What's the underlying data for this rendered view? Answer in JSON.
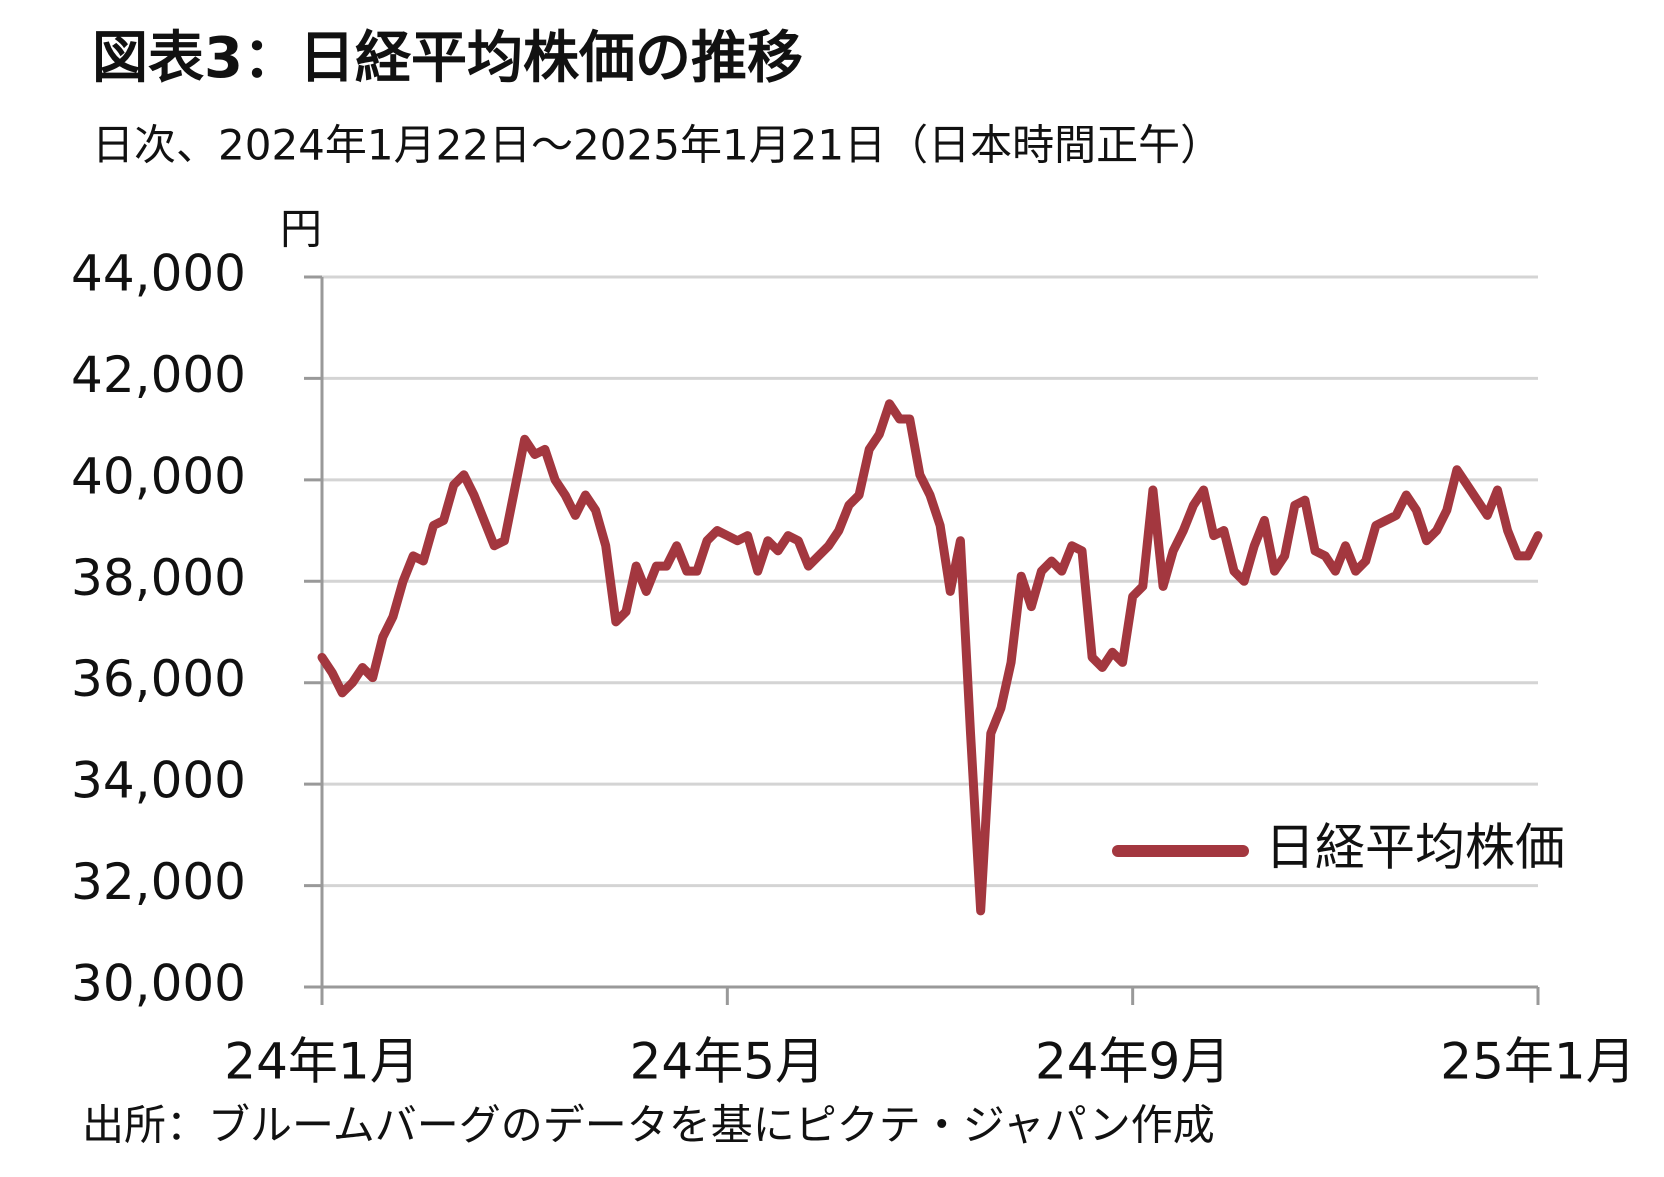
{
  "chart_data": {
    "type": "line",
    "title": "図表3：日経平均株価の推移",
    "subtitle": "日次、2024年1月22日～2025年1月21日（日本時間正午）",
    "y_label": "円",
    "source": "出所：ブルームバーグのデータを基にピクテ・ジャパン作成",
    "categories": [
      "24年1月",
      null,
      null,
      null,
      null,
      null,
      null,
      null,
      null,
      null,
      null,
      null,
      null,
      null,
      null,
      null,
      null,
      null,
      null,
      null,
      null,
      null,
      null,
      null,
      null,
      null,
      null,
      null,
      null,
      null,
      null,
      null,
      null,
      null,
      null,
      null,
      null,
      null,
      null,
      null,
      "24年5月",
      null,
      null,
      null,
      null,
      null,
      null,
      null,
      null,
      null,
      null,
      null,
      null,
      null,
      null,
      null,
      null,
      null,
      null,
      null,
      null,
      null,
      null,
      null,
      null,
      null,
      null,
      null,
      null,
      null,
      null,
      null,
      null,
      null,
      null,
      null,
      null,
      null,
      null,
      null,
      "24年9月",
      null,
      null,
      null,
      null,
      null,
      null,
      null,
      null,
      null,
      null,
      null,
      null,
      null,
      null,
      null,
      null,
      null,
      null,
      null,
      null,
      null,
      null,
      null,
      null,
      null,
      null,
      null,
      null,
      null,
      null,
      null,
      null,
      null,
      null,
      null,
      null,
      null,
      null,
      null,
      "25年1月"
    ],
    "series": [
      {
        "name": "日経平均株価",
        "color": "#a3373f",
        "values": [
          36500,
          36200,
          35800,
          36000,
          36300,
          36100,
          36900,
          37300,
          38000,
          38500,
          38400,
          39100,
          39200,
          39900,
          40100,
          39700,
          39200,
          38700,
          38800,
          39800,
          40800,
          40500,
          40600,
          40000,
          39700,
          39300,
          39700,
          39400,
          38700,
          37200,
          37400,
          38300,
          37800,
          38300,
          38300,
          38700,
          38200,
          38200,
          38800,
          39000,
          38900,
          38800,
          38900,
          38200,
          38800,
          38600,
          38900,
          38800,
          38300,
          38500,
          38700,
          39000,
          39500,
          39700,
          40600,
          40900,
          41500,
          41200,
          41200,
          40100,
          39700,
          39100,
          37800,
          38800,
          35000,
          31500,
          35000,
          35500,
          36400,
          38100,
          37500,
          38200,
          38400,
          38200,
          38700,
          38600,
          36500,
          36300,
          36600,
          36400,
          37700,
          37900,
          39800,
          37900,
          38600,
          39000,
          39500,
          39800,
          38900,
          39000,
          38200,
          38000,
          38700,
          39200,
          38200,
          38500,
          39500,
          39600,
          38600,
          38500,
          38200,
          38700,
          38200,
          38400,
          39100,
          39200,
          39300,
          39700,
          39400,
          38800,
          39000,
          39400,
          40200,
          39900,
          39600,
          39300,
          39800,
          39000,
          38500,
          38500,
          38900
        ]
      }
    ],
    "ylim": [
      30000,
      44000
    ],
    "yticks": [
      {
        "value": 30000,
        "label": "30,000"
      },
      {
        "value": 32000,
        "label": "32,000"
      },
      {
        "value": 34000,
        "label": "34,000"
      },
      {
        "value": 36000,
        "label": "36,000"
      },
      {
        "value": 38000,
        "label": "38,000"
      },
      {
        "value": 40000,
        "label": "40,000"
      },
      {
        "value": 42000,
        "label": "42,000"
      },
      {
        "value": 44000,
        "label": "44,000"
      }
    ],
    "grid": true,
    "legend": "lower right"
  }
}
